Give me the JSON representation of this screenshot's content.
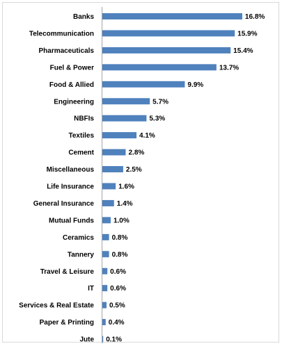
{
  "chart_data": {
    "type": "bar",
    "orientation": "horizontal",
    "title": "",
    "xlabel": "",
    "ylabel": "",
    "categories": [
      "Banks",
      "Telecommunication",
      "Pharmaceuticals",
      "Fuel & Power",
      "Food & Allied",
      "Engineering",
      "NBFIs",
      "Textiles",
      "Cement",
      "Miscellaneous",
      "Life Insurance",
      "General Insurance",
      "Mutual Funds",
      "Ceramics",
      "Tannery",
      "Travel & Leisure",
      "IT",
      "Services & Real Estate",
      "Paper & Printing",
      "Jute"
    ],
    "values": [
      16.8,
      15.9,
      15.4,
      13.7,
      9.9,
      5.7,
      5.3,
      4.1,
      2.8,
      2.5,
      1.6,
      1.4,
      1.0,
      0.8,
      0.8,
      0.6,
      0.6,
      0.5,
      0.4,
      0.1
    ],
    "value_labels": [
      "16.8%",
      "15.9%",
      "15.4%",
      "13.7%",
      "9.9%",
      "5.7%",
      "5.3%",
      "4.1%",
      "2.8%",
      "2.5%",
      "1.6%",
      "1.4%",
      "1.0%",
      "0.8%",
      "0.8%",
      "0.6%",
      "0.6%",
      "0.5%",
      "0.4%",
      "0.1%"
    ],
    "value_unit": "%",
    "xlim": [
      0,
      18
    ],
    "grid": false,
    "legend": "none",
    "bar_color": "#4f81bd",
    "axis_color": "#a6a6a6"
  }
}
